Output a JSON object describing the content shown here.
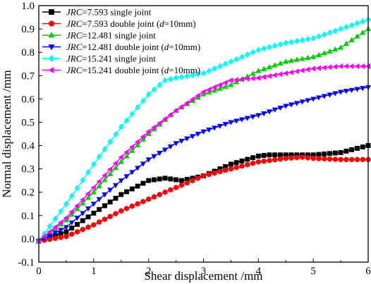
{
  "chart_data": {
    "type": "line",
    "xlabel": "Shear displacement /mm",
    "ylabel": "Normal displacement /mm",
    "xlim": [
      0,
      6
    ],
    "ylim": [
      -0.1,
      1.0
    ],
    "xticks": [
      0,
      1,
      2,
      3,
      4,
      5,
      6
    ],
    "yticks": [
      -0.1,
      0.0,
      0.1,
      0.2,
      0.3,
      0.4,
      0.5,
      0.6,
      0.7,
      0.8,
      0.9,
      1.0
    ],
    "xtick_labels": [
      "0",
      "1",
      "2",
      "3",
      "4",
      "5",
      "6"
    ],
    "ytick_labels": [
      "-0.1",
      "0.0",
      "0.1",
      "0.2",
      "0.3",
      "0.4",
      "0.5",
      "0.6",
      "0.7",
      "0.8",
      "0.9",
      "1.0"
    ],
    "grid": false,
    "legend_position": "top-left",
    "series": [
      {
        "legend": {
          "prefix": "JRC",
          "rest": "=7.593 single joint",
          "suffix": "",
          "dvar": "",
          "close": ""
        },
        "color": "#000000",
        "marker": "square",
        "points": [
          [
            0,
            -0.01
          ],
          [
            0.5,
            0.03
          ],
          [
            1,
            0.11
          ],
          [
            1.5,
            0.19
          ],
          [
            2,
            0.25
          ],
          [
            2.3,
            0.26
          ],
          [
            2.6,
            0.25
          ],
          [
            3,
            0.27
          ],
          [
            3.5,
            0.32
          ],
          [
            4,
            0.355
          ],
          [
            4.2,
            0.36
          ],
          [
            4.5,
            0.36
          ],
          [
            5,
            0.36
          ],
          [
            5.5,
            0.37
          ],
          [
            6,
            0.4
          ]
        ]
      },
      {
        "legend": {
          "prefix": "JRC",
          "rest": "=7.593 double joint (",
          "suffix": "=10mm)",
          "dvar": "d",
          "close": ""
        },
        "color": "#ff0000",
        "marker": "circle",
        "points": [
          [
            0,
            -0.01
          ],
          [
            0.5,
            0.01
          ],
          [
            1,
            0.06
          ],
          [
            1.5,
            0.12
          ],
          [
            2,
            0.17
          ],
          [
            2.5,
            0.22
          ],
          [
            3,
            0.27
          ],
          [
            3.5,
            0.3
          ],
          [
            4,
            0.33
          ],
          [
            4.5,
            0.345
          ],
          [
            4.8,
            0.35
          ],
          [
            5,
            0.345
          ],
          [
            5.5,
            0.34
          ],
          [
            6,
            0.34
          ]
        ]
      },
      {
        "legend": {
          "prefix": "JRC",
          "rest": "=12.481 single joint",
          "suffix": "",
          "dvar": "",
          "close": ""
        },
        "color": "#00cc00",
        "marker": "triangle-up",
        "points": [
          [
            0,
            -0.01
          ],
          [
            0.5,
            0.08
          ],
          [
            1,
            0.2
          ],
          [
            1.5,
            0.33
          ],
          [
            2,
            0.45
          ],
          [
            2.5,
            0.55
          ],
          [
            3,
            0.62
          ],
          [
            3.5,
            0.66
          ],
          [
            4,
            0.72
          ],
          [
            4.5,
            0.76
          ],
          [
            5,
            0.78
          ],
          [
            5.5,
            0.82
          ],
          [
            6,
            0.9
          ]
        ]
      },
      {
        "legend": {
          "prefix": "JRC",
          "rest": "=12.481 double joint (",
          "suffix": "=10mm)",
          "dvar": "d",
          "close": ""
        },
        "color": "#0000ff",
        "marker": "triangle-down",
        "points": [
          [
            0,
            -0.01
          ],
          [
            0.5,
            0.05
          ],
          [
            1,
            0.15
          ],
          [
            1.5,
            0.25
          ],
          [
            2,
            0.34
          ],
          [
            2.5,
            0.41
          ],
          [
            3,
            0.46
          ],
          [
            3.5,
            0.5
          ],
          [
            4,
            0.53
          ],
          [
            4.5,
            0.57
          ],
          [
            5,
            0.6
          ],
          [
            5.5,
            0.63
          ],
          [
            6,
            0.65
          ]
        ]
      },
      {
        "legend": {
          "prefix": "JRC",
          "rest": "=15.241 single joint",
          "suffix": "",
          "dvar": "",
          "close": ""
        },
        "color": "#00ffff",
        "marker": "diamond",
        "points": [
          [
            0,
            -0.01
          ],
          [
            0.5,
            0.15
          ],
          [
            1,
            0.32
          ],
          [
            1.5,
            0.48
          ],
          [
            2,
            0.62
          ],
          [
            2.3,
            0.68
          ],
          [
            2.5,
            0.69
          ],
          [
            3,
            0.71
          ],
          [
            3.5,
            0.76
          ],
          [
            4,
            0.81
          ],
          [
            4.5,
            0.84
          ],
          [
            5,
            0.86
          ],
          [
            5.5,
            0.9
          ],
          [
            6,
            0.94
          ]
        ]
      },
      {
        "legend": {
          "prefix": "JRC",
          "rest": "=15.241 double joint (",
          "suffix": "=10mm)",
          "dvar": "d",
          "close": ""
        },
        "color": "#ff00ff",
        "marker": "triangle-left",
        "points": [
          [
            0,
            -0.01
          ],
          [
            0.5,
            0.09
          ],
          [
            1,
            0.22
          ],
          [
            1.5,
            0.35
          ],
          [
            2,
            0.46
          ],
          [
            2.5,
            0.55
          ],
          [
            3,
            0.63
          ],
          [
            3.5,
            0.68
          ],
          [
            4,
            0.69
          ],
          [
            4.5,
            0.71
          ],
          [
            5,
            0.73
          ],
          [
            5.5,
            0.74
          ],
          [
            6,
            0.74
          ]
        ]
      }
    ]
  }
}
